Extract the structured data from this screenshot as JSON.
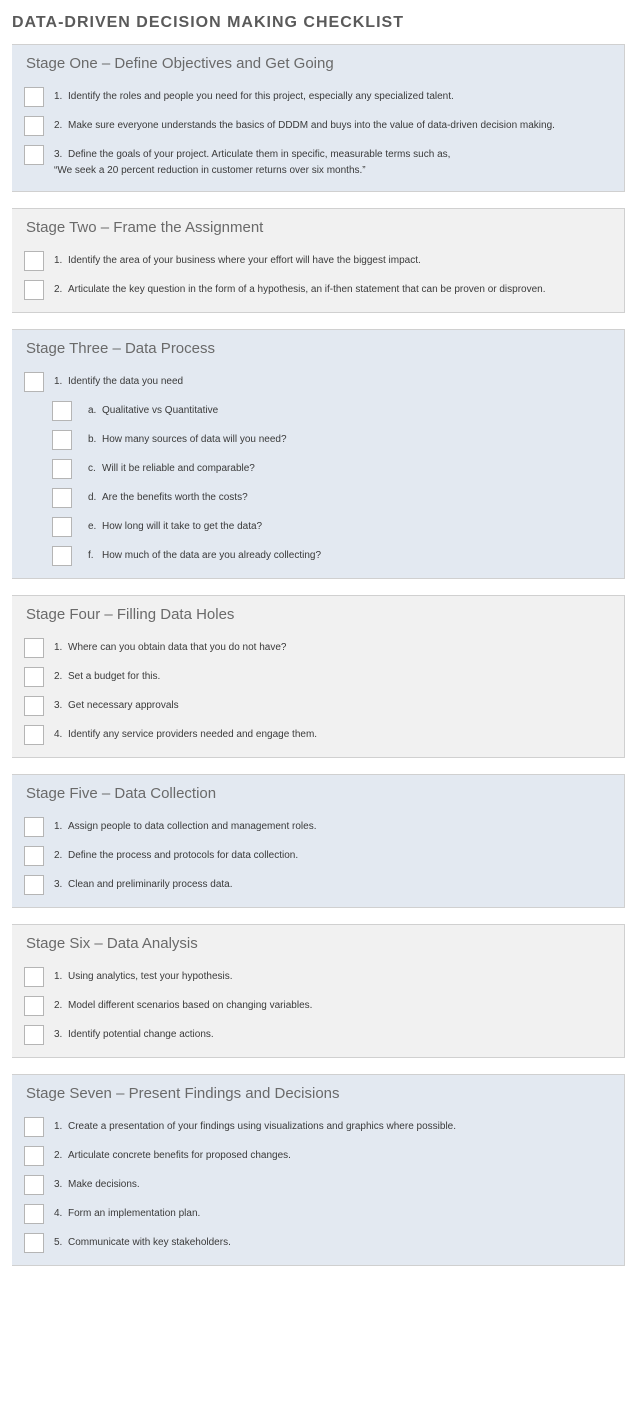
{
  "title": "DATA-DRIVEN DECISION MAKING CHECKLIST",
  "colors": {
    "blue_bg": "#e3e9f1",
    "grey_bg": "#f1f1f1",
    "title_color": "#5a5a5a",
    "header_color": "#6a6a6a",
    "text_color": "#3a3a3a",
    "checkbox_border": "#b5b5b5",
    "stage_border": "#d0d0d0"
  },
  "stages": [
    {
      "header": "Stage One – Define Objectives and Get Going",
      "bg": "blue",
      "items": [
        {
          "n": "1.",
          "text": "Identify the roles and people you need for this project, especially any specialized talent."
        },
        {
          "n": "2.",
          "text": "Make sure everyone understands the basics of DDDM and buys into the value of data-driven decision making."
        },
        {
          "n": "3.",
          "text": "Define the goals of your project. Articulate them in specific, measurable terms such as,\n“We seek a 20 percent reduction in customer returns over six months.”"
        }
      ]
    },
    {
      "header": "Stage Two – Frame the Assignment",
      "bg": "grey",
      "items": [
        {
          "n": "1.",
          "text": "Identify the area of your business where your effort will have the biggest impact."
        },
        {
          "n": "2.",
          "text": "Articulate the key question in the form of a hypothesis, an if-then statement that can be proven or disproven."
        }
      ]
    },
    {
      "header": "Stage Three – Data Process",
      "bg": "blue",
      "items": [
        {
          "n": "1.",
          "text": "Identify the data you need"
        },
        {
          "n": "a.",
          "text": "Qualitative vs Quantitative",
          "sub": true
        },
        {
          "n": "b.",
          "text": "How many sources of data will you need?",
          "sub": true
        },
        {
          "n": "c.",
          "text": "Will it be reliable and comparable?",
          "sub": true
        },
        {
          "n": "d.",
          "text": "Are the benefits worth the costs?",
          "sub": true
        },
        {
          "n": "e.",
          "text": "How long will it take to get the data?",
          "sub": true
        },
        {
          "n": "f.",
          "text": "How much of the data are you already collecting?",
          "sub": true
        }
      ]
    },
    {
      "header": "Stage Four – Filling Data Holes",
      "bg": "grey",
      "items": [
        {
          "n": "1.",
          "text": "Where can you obtain data that you do not have?"
        },
        {
          "n": "2.",
          "text": "Set a budget for this."
        },
        {
          "n": "3.",
          "text": "Get necessary approvals"
        },
        {
          "n": "4.",
          "text": "Identify any service providers needed and engage them."
        }
      ]
    },
    {
      "header": "Stage Five – Data Collection",
      "bg": "blue",
      "items": [
        {
          "n": "1.",
          "text": "Assign people to data collection and management roles."
        },
        {
          "n": "2.",
          "text": "Define the process and protocols for data collection."
        },
        {
          "n": "3.",
          "text": "Clean and preliminarily process data."
        }
      ]
    },
    {
      "header": "Stage Six – Data Analysis",
      "bg": "grey",
      "items": [
        {
          "n": "1.",
          "text": "Using analytics, test your hypothesis."
        },
        {
          "n": "2.",
          "text": "Model different scenarios based on changing variables."
        },
        {
          "n": "3.",
          "text": "Identify potential change actions."
        }
      ]
    },
    {
      "header": "Stage Seven – Present Findings and Decisions",
      "bg": "blue",
      "items": [
        {
          "n": "1.",
          "text": "Create a presentation of your findings using visualizations and graphics where possible."
        },
        {
          "n": "2.",
          "text": "Articulate concrete benefits for proposed changes."
        },
        {
          "n": "3.",
          "text": "Make decisions."
        },
        {
          "n": "4.",
          "text": "Form an implementation plan."
        },
        {
          "n": "5.",
          "text": "Communicate with key stakeholders."
        }
      ]
    }
  ]
}
